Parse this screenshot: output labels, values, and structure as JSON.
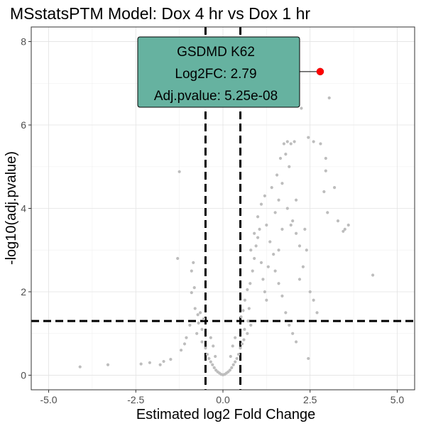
{
  "chart_data": {
    "type": "scatter",
    "title": "MSstatsPTM Model: Dox 4 hr vs Dox 1 hr",
    "xlabel": "Estimated log2 Fold Change",
    "ylabel": "-log10(adj.pvalue)",
    "xlim": [
      -5.5,
      5.5
    ],
    "ylim": [
      -0.35,
      8.35
    ],
    "x_ticks": [
      -5,
      -2.5,
      0,
      2.5,
      5
    ],
    "x_tick_labels": [
      "-5.0",
      "-2.5",
      "0.0",
      "2.5",
      "5.0"
    ],
    "y_ticks": [
      0,
      2,
      4,
      6,
      8
    ],
    "y_tick_labels": [
      "0",
      "2",
      "4",
      "6",
      "8"
    ],
    "grid": true,
    "fc_cutoff": [
      -0.5,
      0.5
    ],
    "pvalue_cutoff_log10": 1.3,
    "point_color": "#bdbdbd",
    "highlight_color": "#ff0000",
    "highlight": {
      "x": 2.79,
      "y": 7.28,
      "label_lines": [
        "GSDMD K62",
        "Log2FC: 2.79",
        "Adj.pvalue: 5.25e-08"
      ],
      "box_color": "#66b2a0"
    },
    "points": [
      [
        -4.1,
        0.2
      ],
      [
        -3.3,
        0.25
      ],
      [
        -2.35,
        0.27
      ],
      [
        -2.1,
        0.3
      ],
      [
        -1.8,
        0.25
      ],
      [
        -1.7,
        0.33
      ],
      [
        -1.5,
        0.38
      ],
      [
        -1.2,
        0.6
      ],
      [
        -1.3,
        2.8
      ],
      [
        -1.25,
        4.88
      ],
      [
        -0.9,
        1.98
      ],
      [
        -0.82,
        2.1
      ],
      [
        -0.9,
        2.5
      ],
      [
        -0.85,
        2.7
      ],
      [
        -0.8,
        1.6
      ],
      [
        -0.72,
        1.45
      ],
      [
        -0.65,
        1.5
      ],
      [
        -0.55,
        1.35
      ],
      [
        -0.95,
        1.2
      ],
      [
        -1.05,
        0.9
      ],
      [
        -1.1,
        0.75
      ],
      [
        -0.75,
        1.0
      ],
      [
        -0.6,
        0.8
      ],
      [
        -0.5,
        0.65
      ],
      [
        -0.45,
        0.5
      ],
      [
        -0.4,
        0.4
      ],
      [
        -0.35,
        0.32
      ],
      [
        -0.3,
        0.25
      ],
      [
        -0.25,
        0.18
      ],
      [
        -0.2,
        0.12
      ],
      [
        -0.15,
        0.08
      ],
      [
        -0.1,
        0.05
      ],
      [
        -0.05,
        0.02
      ],
      [
        0.0,
        0.01
      ],
      [
        0.05,
        0.02
      ],
      [
        0.1,
        0.05
      ],
      [
        0.15,
        0.08
      ],
      [
        0.2,
        0.12
      ],
      [
        0.25,
        0.18
      ],
      [
        0.3,
        0.25
      ],
      [
        0.35,
        0.32
      ],
      [
        0.4,
        0.4
      ],
      [
        0.45,
        0.5
      ],
      [
        0.5,
        0.65
      ],
      [
        0.55,
        0.75
      ],
      [
        0.6,
        0.85
      ],
      [
        0.7,
        1.0
      ],
      [
        0.8,
        1.2
      ],
      [
        -0.28,
        0.7
      ],
      [
        -0.22,
        0.45
      ],
      [
        0.28,
        0.7
      ],
      [
        0.22,
        0.45
      ],
      [
        -0.35,
        0.9
      ],
      [
        0.35,
        0.9
      ],
      [
        -0.6,
        1.1
      ],
      [
        0.62,
        1.1
      ],
      [
        -0.7,
        1.25
      ],
      [
        0.72,
        1.3
      ],
      [
        0.52,
        1.4
      ],
      [
        0.58,
        1.55
      ],
      [
        0.63,
        1.8
      ],
      [
        0.7,
        2.05
      ],
      [
        0.78,
        2.2
      ],
      [
        0.85,
        2.5
      ],
      [
        0.9,
        2.8
      ],
      [
        0.95,
        3.1
      ],
      [
        1.0,
        3.3
      ],
      [
        1.05,
        3.5
      ],
      [
        1.1,
        2.7
      ],
      [
        1.15,
        2.3
      ],
      [
        1.2,
        2.0
      ],
      [
        1.25,
        1.8
      ],
      [
        0.75,
        1.6
      ],
      [
        0.8,
        3.0
      ],
      [
        0.9,
        3.4
      ],
      [
        1.0,
        3.8
      ],
      [
        1.1,
        4.1
      ],
      [
        1.2,
        4.3
      ],
      [
        1.25,
        3.6
      ],
      [
        1.35,
        3.2
      ],
      [
        1.45,
        2.9
      ],
      [
        1.5,
        2.5
      ],
      [
        1.6,
        2.2
      ],
      [
        1.7,
        1.9
      ],
      [
        1.8,
        1.5
      ],
      [
        1.9,
        1.2
      ],
      [
        2.0,
        1.0
      ],
      [
        2.1,
        0.8
      ],
      [
        1.3,
        2.6
      ],
      [
        1.4,
        4.5
      ],
      [
        1.55,
        4.8
      ],
      [
        1.65,
        5.2
      ],
      [
        1.75,
        5.55
      ],
      [
        1.85,
        5.6
      ],
      [
        1.95,
        5.55
      ],
      [
        2.05,
        5.6
      ],
      [
        1.8,
        5.3
      ],
      [
        1.9,
        5.0
      ],
      [
        1.7,
        4.6
      ],
      [
        1.6,
        4.2
      ],
      [
        1.5,
        3.9
      ],
      [
        1.85,
        4.0
      ],
      [
        2.0,
        3.7
      ],
      [
        2.1,
        3.4
      ],
      [
        2.2,
        3.1
      ],
      [
        1.95,
        3.6
      ],
      [
        2.4,
        3.0
      ],
      [
        2.3,
        2.6
      ],
      [
        2.2,
        2.3
      ],
      [
        2.5,
        2.0
      ],
      [
        2.6,
        1.8
      ],
      [
        2.7,
        1.5
      ],
      [
        2.35,
        3.5
      ],
      [
        2.45,
        5.7
      ],
      [
        2.6,
        5.6
      ],
      [
        2.8,
        5.55
      ],
      [
        2.95,
        5.2
      ],
      [
        2.95,
        4.9
      ],
      [
        2.9,
        4.4
      ],
      [
        3.0,
        3.9
      ],
      [
        3.3,
        3.7
      ],
      [
        3.45,
        3.45
      ],
      [
        3.6,
        3.6
      ],
      [
        3.2,
        4.5
      ],
      [
        3.05,
        6.65
      ],
      [
        3.5,
        3.5
      ],
      [
        4.3,
        2.4
      ],
      [
        2.45,
        0.4
      ],
      [
        2.25,
        6.4
      ],
      [
        2.1,
        4.2
      ],
      [
        1.7,
        3.5
      ],
      [
        1.6,
        3.0
      ]
    ]
  }
}
